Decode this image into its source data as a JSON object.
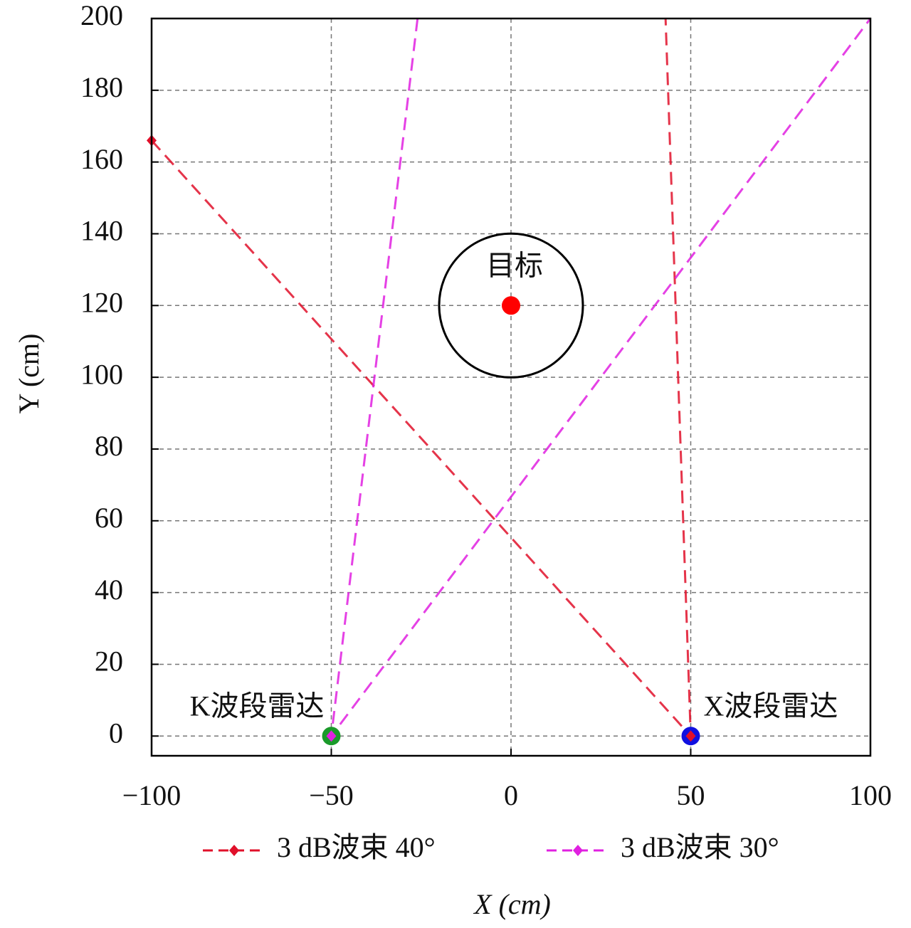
{
  "chart_data": {
    "type": "line",
    "xlabel": "X (cm)",
    "ylabel": "Y (cm)",
    "xlim": [
      -100,
      100
    ],
    "ylim": [
      -5.5,
      200
    ],
    "xticks": [
      {
        "value": -100,
        "label": "−100"
      },
      {
        "value": -50,
        "label": "−50"
      },
      0,
      50,
      100
    ],
    "yticks": [
      0,
      20,
      40,
      60,
      80,
      100,
      120,
      140,
      160,
      180,
      200
    ],
    "grid": true,
    "legend": "bottom",
    "series": [
      {
        "name": "3 dB波束 40°",
        "color": "#e0102a",
        "x": [
          -100,
          50,
          43
        ],
        "values": [
          166,
          0,
          200
        ]
      },
      {
        "name": "3 dB波束 30°",
        "color": "#e020e0",
        "x": [
          -26,
          -50,
          100
        ],
        "values": [
          200,
          0,
          200
        ]
      }
    ],
    "points": [
      {
        "label": "目标",
        "x": 0,
        "y": 120,
        "color": "#ff0000"
      },
      {
        "label": "K波段雷达",
        "x": -50,
        "y": 0,
        "color": "#1a9a2a"
      },
      {
        "label": "X波段雷达",
        "x": 50,
        "y": 0,
        "color": "#1010e0"
      }
    ],
    "circle": {
      "x": 0,
      "y": 120,
      "r": 20
    }
  }
}
